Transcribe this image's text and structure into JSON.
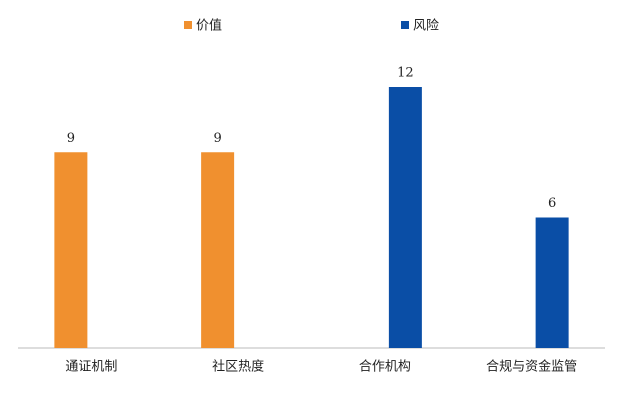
{
  "chart_data": {
    "type": "bar",
    "categories": [
      "通证机制",
      "社区热度",
      "合作机构",
      "合规与资金监管"
    ],
    "series": [
      {
        "name": "价值",
        "color": "#f0902f",
        "values": [
          9,
          9,
          null,
          null
        ]
      },
      {
        "name": "风险",
        "color": "#0a4ea6",
        "values": [
          null,
          null,
          12,
          6
        ]
      }
    ],
    "legend": "top"
  }
}
